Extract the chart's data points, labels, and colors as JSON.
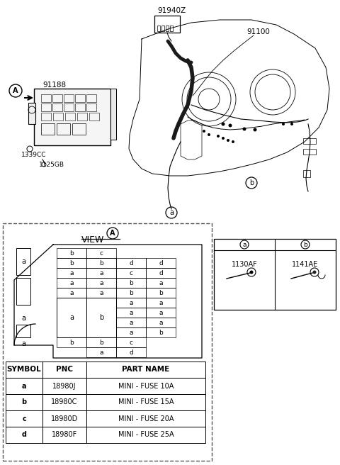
{
  "bg_color": "#ffffff",
  "line_color": "#000000",
  "labels": {
    "91940Z": "91940Z",
    "91100": "91100",
    "91188": "91188",
    "1339CC": "1339CC",
    "1125GB": "1125GB",
    "view": "VIEW",
    "circle_A": "A",
    "connector_a": "1130AF",
    "connector_b": "1141AE"
  },
  "table_headers": [
    "SYMBOL",
    "PNC",
    "PART NAME"
  ],
  "table_rows": [
    [
      "a",
      "18980J",
      "MINI - FUSE 10A"
    ],
    [
      "b",
      "18980C",
      "MINI - FUSE 15A"
    ],
    [
      "c",
      "18980D",
      "MINI - FUSE 20A"
    ],
    [
      "d",
      "18980F",
      "MINI - FUSE 25A"
    ]
  ],
  "fuse_grid": [
    [
      "b",
      "c",
      "",
      ""
    ],
    [
      "b",
      "b",
      "d",
      "d"
    ],
    [
      "a",
      "a",
      "c",
      "d"
    ],
    [
      "a",
      "a",
      "b",
      "a"
    ],
    [
      "a",
      "a",
      "b",
      "b"
    ],
    [
      "",
      "",
      "a",
      "a"
    ],
    [
      "",
      "",
      "a",
      "a"
    ],
    [
      "",
      "",
      "a",
      "a"
    ],
    [
      "",
      "",
      "a",
      "b"
    ],
    [
      "b",
      "b",
      "c",
      ""
    ],
    [
      "",
      "a",
      "d",
      ""
    ]
  ]
}
